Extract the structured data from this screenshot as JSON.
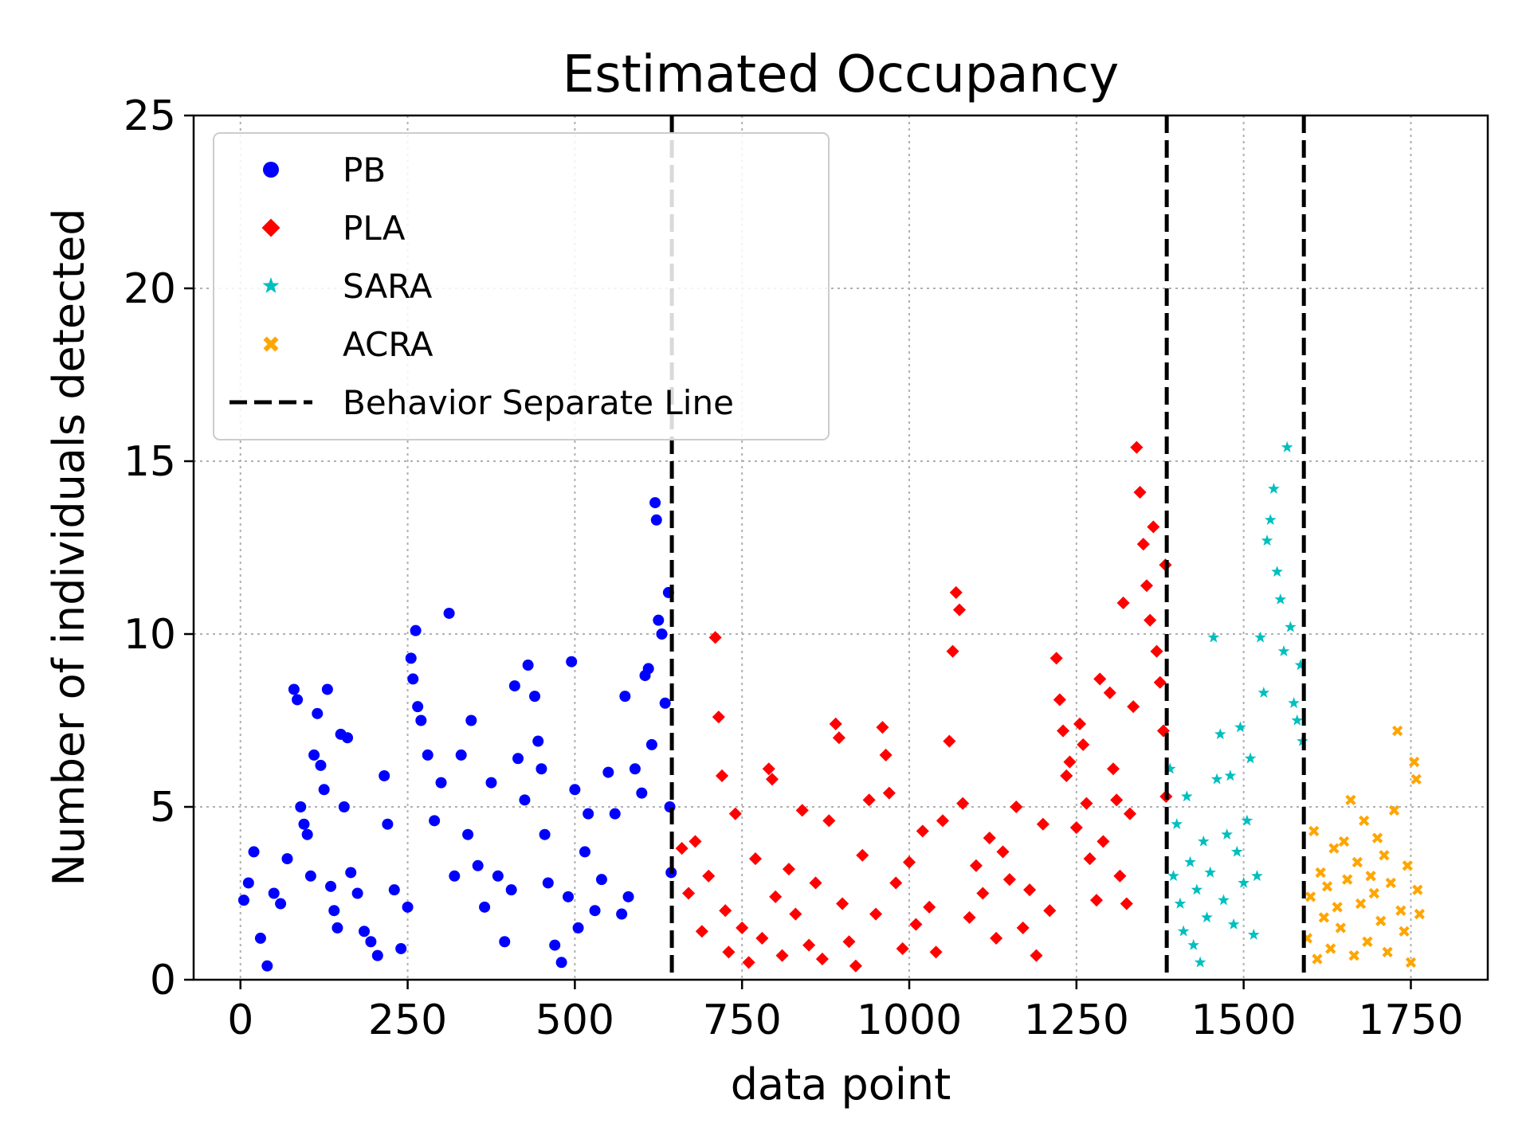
{
  "chart_data": {
    "type": "scatter",
    "title": "Estimated Occupancy",
    "xlabel": "data point",
    "ylabel": "Number of individuals detected",
    "xlim": [
      -220,
      4655
    ],
    "ylim": [
      0,
      25
    ],
    "x_ticks": [
      0,
      250,
      500,
      750,
      1000,
      1250,
      1500,
      1750
    ],
    "y_ticks": [
      0,
      5,
      10,
      15,
      20,
      25
    ],
    "grid": true,
    "legend_position": "upper left",
    "behavior_separate_lines": [
      645,
      1385,
      1590
    ],
    "separate_line_label": "Behavior Separate Line",
    "series": [
      {
        "name": "PB",
        "marker": "circle",
        "color": "#0000ff",
        "x_range": [
          0,
          645
        ],
        "points": [
          [
            5,
            2.3
          ],
          [
            12,
            2.8
          ],
          [
            20,
            3.7
          ],
          [
            30,
            1.2
          ],
          [
            40,
            0.4
          ],
          [
            50,
            2.5
          ],
          [
            60,
            2.2
          ],
          [
            70,
            3.5
          ],
          [
            80,
            8.4
          ],
          [
            85,
            8.1
          ],
          [
            90,
            5.0
          ],
          [
            95,
            4.5
          ],
          [
            100,
            4.2
          ],
          [
            105,
            3.0
          ],
          [
            110,
            6.5
          ],
          [
            115,
            7.7
          ],
          [
            120,
            6.2
          ],
          [
            125,
            5.5
          ],
          [
            130,
            8.4
          ],
          [
            135,
            2.7
          ],
          [
            140,
            2.0
          ],
          [
            145,
            1.5
          ],
          [
            150,
            7.1
          ],
          [
            155,
            5.0
          ],
          [
            160,
            7.0
          ],
          [
            165,
            3.1
          ],
          [
            175,
            2.5
          ],
          [
            185,
            1.4
          ],
          [
            195,
            1.1
          ],
          [
            205,
            0.7
          ],
          [
            215,
            5.9
          ],
          [
            220,
            4.5
          ],
          [
            230,
            2.6
          ],
          [
            240,
            0.9
          ],
          [
            250,
            2.1
          ],
          [
            255,
            9.3
          ],
          [
            258,
            8.7
          ],
          [
            262,
            10.1
          ],
          [
            265,
            7.9
          ],
          [
            270,
            7.5
          ],
          [
            280,
            6.5
          ],
          [
            290,
            4.6
          ],
          [
            300,
            5.7
          ],
          [
            312,
            10.6
          ],
          [
            320,
            3.0
          ],
          [
            330,
            6.5
          ],
          [
            340,
            4.2
          ],
          [
            345,
            7.5
          ],
          [
            355,
            3.3
          ],
          [
            365,
            2.1
          ],
          [
            375,
            5.7
          ],
          [
            385,
            3.0
          ],
          [
            395,
            1.1
          ],
          [
            405,
            2.6
          ],
          [
            410,
            8.5
          ],
          [
            415,
            6.4
          ],
          [
            425,
            5.2
          ],
          [
            430,
            9.1
          ],
          [
            440,
            8.2
          ],
          [
            445,
            6.9
          ],
          [
            450,
            6.1
          ],
          [
            455,
            4.2
          ],
          [
            460,
            2.8
          ],
          [
            470,
            1.0
          ],
          [
            480,
            0.5
          ],
          [
            490,
            2.4
          ],
          [
            495,
            9.2
          ],
          [
            500,
            5.5
          ],
          [
            505,
            1.5
          ],
          [
            515,
            3.7
          ],
          [
            520,
            4.8
          ],
          [
            530,
            2.0
          ],
          [
            540,
            2.9
          ],
          [
            550,
            6.0
          ],
          [
            560,
            4.8
          ],
          [
            570,
            1.9
          ],
          [
            575,
            8.2
          ],
          [
            580,
            2.4
          ],
          [
            590,
            6.1
          ],
          [
            600,
            5.4
          ],
          [
            605,
            8.8
          ],
          [
            610,
            9.0
          ],
          [
            615,
            6.8
          ],
          [
            620,
            13.8
          ],
          [
            622,
            13.3
          ],
          [
            625,
            10.4
          ],
          [
            630,
            10.0
          ],
          [
            635,
            8.0
          ],
          [
            640,
            11.2
          ],
          [
            642,
            5.0
          ],
          [
            644,
            3.1
          ]
        ]
      },
      {
        "name": "PLA",
        "marker": "diamond",
        "color": "#ff0000",
        "x_range": [
          645,
          1385
        ],
        "points": [
          [
            660,
            3.8
          ],
          [
            670,
            2.5
          ],
          [
            680,
            4.0
          ],
          [
            690,
            1.4
          ],
          [
            700,
            3.0
          ],
          [
            710,
            9.9
          ],
          [
            715,
            7.6
          ],
          [
            720,
            5.9
          ],
          [
            725,
            2.0
          ],
          [
            730,
            0.8
          ],
          [
            740,
            4.8
          ],
          [
            750,
            1.5
          ],
          [
            760,
            0.5
          ],
          [
            770,
            3.5
          ],
          [
            780,
            1.2
          ],
          [
            790,
            6.1
          ],
          [
            795,
            5.8
          ],
          [
            800,
            2.4
          ],
          [
            810,
            0.7
          ],
          [
            820,
            3.2
          ],
          [
            830,
            1.9
          ],
          [
            840,
            4.9
          ],
          [
            850,
            1.0
          ],
          [
            860,
            2.8
          ],
          [
            870,
            0.6
          ],
          [
            880,
            4.6
          ],
          [
            890,
            7.4
          ],
          [
            895,
            7.0
          ],
          [
            900,
            2.2
          ],
          [
            910,
            1.1
          ],
          [
            920,
            0.4
          ],
          [
            930,
            3.6
          ],
          [
            940,
            5.2
          ],
          [
            950,
            1.9
          ],
          [
            960,
            7.3
          ],
          [
            965,
            6.5
          ],
          [
            970,
            5.4
          ],
          [
            980,
            2.8
          ],
          [
            990,
            0.9
          ],
          [
            1000,
            3.4
          ],
          [
            1010,
            1.6
          ],
          [
            1020,
            4.3
          ],
          [
            1030,
            2.1
          ],
          [
            1040,
            0.8
          ],
          [
            1050,
            4.6
          ],
          [
            1060,
            6.9
          ],
          [
            1065,
            9.5
          ],
          [
            1070,
            11.2
          ],
          [
            1075,
            10.7
          ],
          [
            1080,
            5.1
          ],
          [
            1090,
            1.8
          ],
          [
            1100,
            3.3
          ],
          [
            1110,
            2.5
          ],
          [
            1120,
            4.1
          ],
          [
            1130,
            1.2
          ],
          [
            1140,
            3.7
          ],
          [
            1150,
            2.9
          ],
          [
            1160,
            5.0
          ],
          [
            1170,
            1.5
          ],
          [
            1180,
            2.6
          ],
          [
            1190,
            0.7
          ],
          [
            1200,
            4.5
          ],
          [
            1210,
            2.0
          ],
          [
            1220,
            9.3
          ],
          [
            1225,
            8.1
          ],
          [
            1230,
            7.2
          ],
          [
            1235,
            5.9
          ],
          [
            1240,
            6.3
          ],
          [
            1250,
            4.4
          ],
          [
            1255,
            7.4
          ],
          [
            1260,
            6.8
          ],
          [
            1265,
            5.1
          ],
          [
            1270,
            3.5
          ],
          [
            1280,
            2.3
          ],
          [
            1285,
            8.7
          ],
          [
            1290,
            4.0
          ],
          [
            1300,
            8.3
          ],
          [
            1305,
            6.1
          ],
          [
            1310,
            5.2
          ],
          [
            1315,
            3.0
          ],
          [
            1320,
            10.9
          ],
          [
            1325,
            2.2
          ],
          [
            1330,
            4.8
          ],
          [
            1335,
            7.9
          ],
          [
            1340,
            15.4
          ],
          [
            1345,
            14.1
          ],
          [
            1350,
            12.6
          ],
          [
            1355,
            11.4
          ],
          [
            1360,
            10.4
          ],
          [
            1365,
            13.1
          ],
          [
            1370,
            9.5
          ],
          [
            1375,
            8.6
          ],
          [
            1380,
            7.2
          ],
          [
            1383,
            12.0
          ],
          [
            1384,
            5.3
          ]
        ]
      },
      {
        "name": "SARA",
        "marker": "star",
        "color": "#00bfbf",
        "x_range": [
          1385,
          1590
        ],
        "points": [
          [
            1390,
            6.1
          ],
          [
            1395,
            3.0
          ],
          [
            1400,
            4.5
          ],
          [
            1405,
            2.2
          ],
          [
            1410,
            1.4
          ],
          [
            1415,
            5.3
          ],
          [
            1420,
            3.4
          ],
          [
            1425,
            1.0
          ],
          [
            1430,
            2.6
          ],
          [
            1435,
            0.5
          ],
          [
            1440,
            4.0
          ],
          [
            1445,
            1.8
          ],
          [
            1450,
            3.1
          ],
          [
            1455,
            9.9
          ],
          [
            1460,
            5.8
          ],
          [
            1465,
            7.1
          ],
          [
            1470,
            2.3
          ],
          [
            1475,
            4.2
          ],
          [
            1480,
            5.9
          ],
          [
            1485,
            1.6
          ],
          [
            1490,
            3.7
          ],
          [
            1495,
            7.3
          ],
          [
            1500,
            2.8
          ],
          [
            1505,
            4.6
          ],
          [
            1510,
            6.4
          ],
          [
            1515,
            1.3
          ],
          [
            1520,
            3.0
          ],
          [
            1525,
            9.9
          ],
          [
            1530,
            8.3
          ],
          [
            1535,
            12.7
          ],
          [
            1540,
            13.3
          ],
          [
            1545,
            14.2
          ],
          [
            1550,
            11.8
          ],
          [
            1555,
            11.0
          ],
          [
            1560,
            9.5
          ],
          [
            1565,
            15.4
          ],
          [
            1570,
            10.2
          ],
          [
            1575,
            8.0
          ],
          [
            1580,
            7.5
          ],
          [
            1585,
            9.1
          ],
          [
            1588,
            6.9
          ]
        ]
      },
      {
        "name": "ACRA",
        "marker": "x",
        "color": "#ffa500",
        "x_range": [
          1590,
          1765
        ],
        "points": [
          [
            1595,
            1.2
          ],
          [
            1600,
            2.4
          ],
          [
            1605,
            4.3
          ],
          [
            1610,
            0.6
          ],
          [
            1615,
            3.1
          ],
          [
            1620,
            1.8
          ],
          [
            1625,
            2.7
          ],
          [
            1630,
            0.9
          ],
          [
            1635,
            3.8
          ],
          [
            1640,
            2.1
          ],
          [
            1645,
            1.5
          ],
          [
            1650,
            4.0
          ],
          [
            1655,
            2.9
          ],
          [
            1660,
            5.2
          ],
          [
            1665,
            0.7
          ],
          [
            1670,
            3.4
          ],
          [
            1675,
            2.2
          ],
          [
            1680,
            4.6
          ],
          [
            1685,
            1.1
          ],
          [
            1690,
            3.0
          ],
          [
            1695,
            2.5
          ],
          [
            1700,
            4.1
          ],
          [
            1705,
            1.7
          ],
          [
            1710,
            3.6
          ],
          [
            1715,
            0.8
          ],
          [
            1720,
            2.8
          ],
          [
            1725,
            4.9
          ],
          [
            1730,
            7.2
          ],
          [
            1735,
            2.0
          ],
          [
            1740,
            1.4
          ],
          [
            1745,
            3.3
          ],
          [
            1750,
            0.5
          ],
          [
            1755,
            6.3
          ],
          [
            1758,
            5.8
          ],
          [
            1760,
            2.6
          ],
          [
            1763,
            1.9
          ]
        ]
      }
    ]
  }
}
